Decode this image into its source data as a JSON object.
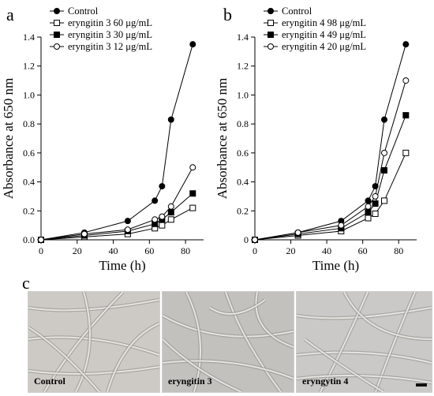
{
  "panel_labels": {
    "a": "a",
    "b": "b",
    "c": "c"
  },
  "chart_data": [
    {
      "type": "line",
      "panel": "a",
      "x": [
        0,
        24,
        48,
        63,
        67,
        72,
        84
      ],
      "xlabel": "Time (h)",
      "ylabel": "Absorbance at 650 nm",
      "xlim": [
        0,
        90
      ],
      "ylim": [
        0,
        1.4
      ],
      "xticks": [
        "0",
        "20",
        "40",
        "60",
        "80"
      ],
      "yticks": [
        "0.0",
        "0.2",
        "0.4",
        "0.6",
        "0.8",
        "1.0",
        "1.2",
        "1.4"
      ],
      "legend_position": "top-left",
      "series": [
        {
          "name": "Control",
          "marker": "filled-circle",
          "values": [
            0.0,
            0.05,
            0.13,
            0.27,
            0.37,
            0.83,
            1.35
          ]
        },
        {
          "name": "eryngitin 3 60 μg/mL",
          "marker": "open-square",
          "values": [
            0.0,
            0.02,
            0.04,
            0.08,
            0.1,
            0.14,
            0.22
          ]
        },
        {
          "name": "eryngitin 3 30 μg/mL",
          "marker": "filled-square",
          "values": [
            0.0,
            0.03,
            0.06,
            0.11,
            0.14,
            0.19,
            0.32
          ]
        },
        {
          "name": "eryngitin 3 12 μg/mL",
          "marker": "open-circle",
          "values": [
            0.0,
            0.04,
            0.07,
            0.14,
            0.16,
            0.23,
            0.5
          ]
        }
      ]
    },
    {
      "type": "line",
      "panel": "b",
      "x": [
        0,
        24,
        48,
        63,
        67,
        72,
        84
      ],
      "xlabel": "Time (h)",
      "ylabel": "Absorbance at 650 nm",
      "xlim": [
        0,
        90
      ],
      "ylim": [
        0,
        1.4
      ],
      "xticks": [
        "0",
        "20",
        "40",
        "60",
        "80"
      ],
      "yticks": [
        "0",
        "0.2",
        "0.4",
        "0.6",
        "0.8",
        "1.0",
        "1.2",
        "1.4"
      ],
      "legend_position": "top-left",
      "series": [
        {
          "name": "Control",
          "marker": "filled-circle",
          "values": [
            0.0,
            0.05,
            0.13,
            0.27,
            0.37,
            0.83,
            1.35
          ]
        },
        {
          "name": "eryngitin 4 98 μg/mL",
          "marker": "open-square",
          "values": [
            0.0,
            0.03,
            0.06,
            0.15,
            0.18,
            0.27,
            0.6
          ]
        },
        {
          "name": "eryngitin 4 49 μg/mL",
          "marker": "filled-square",
          "values": [
            0.0,
            0.04,
            0.08,
            0.19,
            0.25,
            0.48,
            0.86
          ]
        },
        {
          "name": "eryngitin 4 20 μg/mL",
          "marker": "open-circle",
          "values": [
            0.0,
            0.05,
            0.1,
            0.23,
            0.3,
            0.6,
            1.1
          ]
        }
      ]
    }
  ],
  "micrographs": [
    {
      "label": "Control",
      "tone": "#c9c6c1"
    },
    {
      "label": "eryngitin 3",
      "tone": "#bebcb9"
    },
    {
      "label": "eryngytin 4",
      "tone": "#c7c5c3"
    }
  ]
}
